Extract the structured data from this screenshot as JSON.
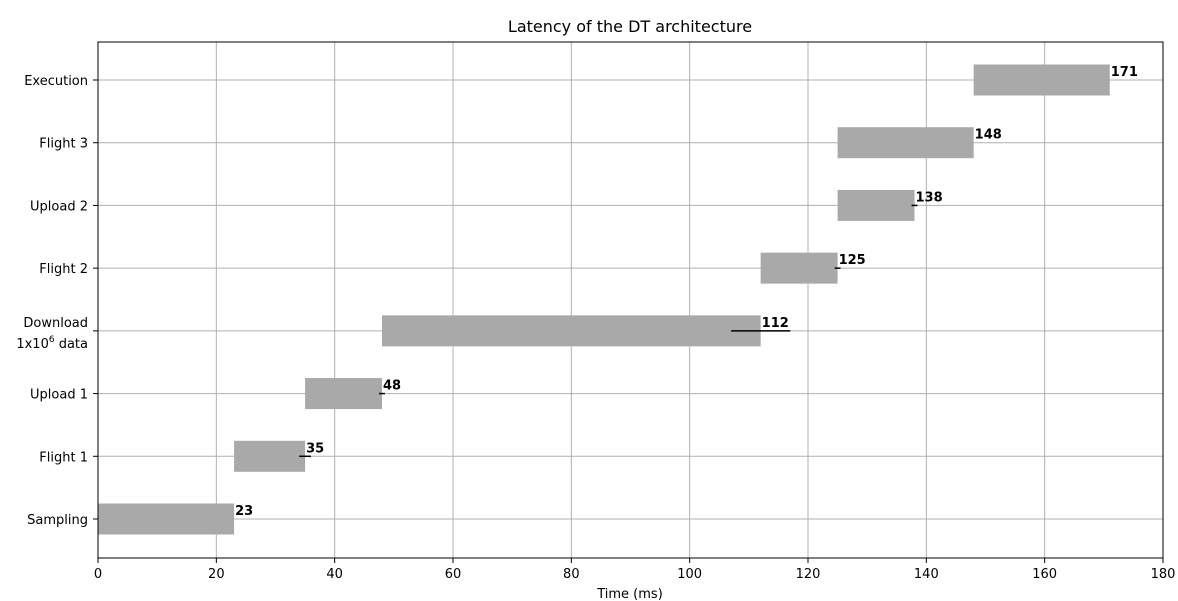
{
  "chart_data": {
    "type": "bar",
    "orientation": "horizontal",
    "title": "Latency of the DT architecture",
    "xlabel": "Time (ms)",
    "ylabel": "",
    "xlim": [
      0,
      180
    ],
    "xticks": [
      0,
      20,
      40,
      60,
      80,
      100,
      120,
      140,
      160,
      180
    ],
    "grid": true,
    "categories": [
      {
        "label": "Sampling",
        "start": 0,
        "end": 23,
        "error": 0,
        "value_label": "23"
      },
      {
        "label": "Flight 1",
        "start": 23,
        "end": 35,
        "error": 1,
        "value_label": "35"
      },
      {
        "label": "Upload 1",
        "start": 35,
        "end": 48,
        "error": 0.5,
        "value_label": "48"
      },
      {
        "label": "Download 1x10^6 data",
        "label_lines": [
          "Download",
          "1x10",
          "6",
          " data"
        ],
        "start": 48,
        "end": 112,
        "error": 5,
        "value_label": "112"
      },
      {
        "label": "Flight 2",
        "start": 112,
        "end": 125,
        "error": 0.5,
        "value_label": "125"
      },
      {
        "label": "Upload 2",
        "start": 125,
        "end": 138,
        "error": 0.5,
        "value_label": "138"
      },
      {
        "label": "Flight 3",
        "start": 125,
        "end": 148,
        "error": 0,
        "value_label": "148"
      },
      {
        "label": "Execution",
        "start": 148,
        "end": 171,
        "error": 0,
        "value_label": "171"
      }
    ],
    "colors": {
      "bar": "#a9a9a9",
      "grid": "#b0b0b0",
      "errorbar": "#000000"
    }
  }
}
